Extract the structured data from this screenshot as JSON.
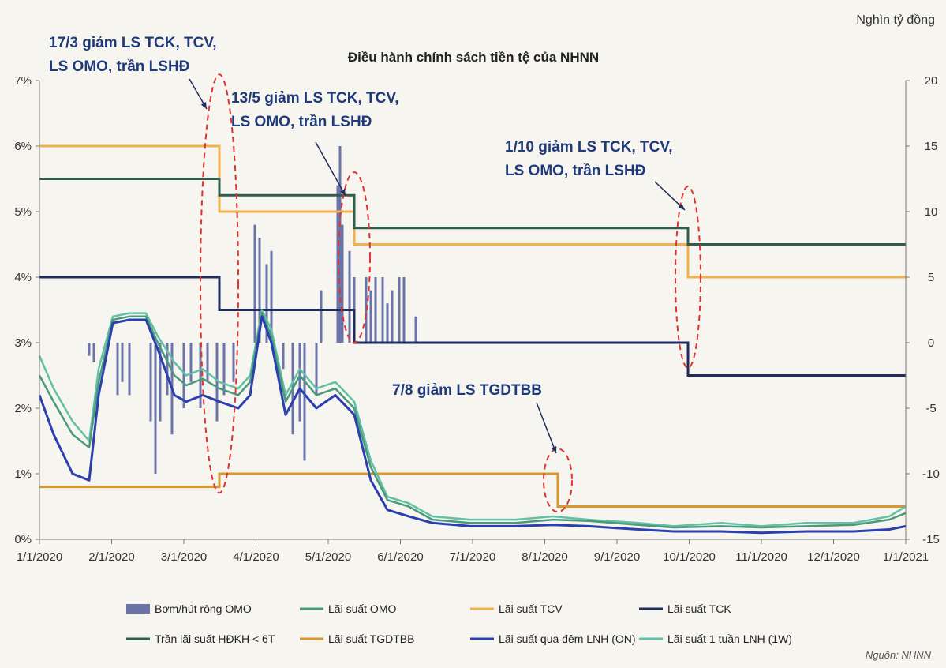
{
  "chart_data": {
    "type": "line",
    "title": "Điều hành chính sách tiền tệ của NHNN",
    "right_axis_unit": "Nghìn tỷ đồng",
    "source": "Nguồn: NHNN",
    "y_left": {
      "ticks": [
        "0%",
        "1%",
        "2%",
        "3%",
        "4%",
        "5%",
        "6%",
        "7%"
      ],
      "ylim": [
        0,
        7
      ]
    },
    "y_right": {
      "ticks": [
        "-15",
        "-10",
        "-5",
        "0",
        "5",
        "10",
        "15",
        "20"
      ],
      "ylim": [
        -15,
        20
      ]
    },
    "x_ticks": [
      "1/1/2020",
      "2/1/2020",
      "3/1/2020",
      "4/1/2020",
      "5/1/2020",
      "6/1/2020",
      "7/1/2020",
      "8/1/2020",
      "9/1/2020",
      "10/1/2020",
      "11/1/2020",
      "12/1/2020",
      "1/1/2021"
    ],
    "x_range": [
      "2020-01-01",
      "2021-01-01"
    ],
    "annotations": [
      {
        "lines": [
          "17/3 giảm LS TCK, TCV,",
          "LS OMO, trần LSHĐ"
        ],
        "date": "2020-03-17"
      },
      {
        "lines": [
          "13/5 giảm LS TCK, TCV,",
          "LS OMO, trần LSHĐ"
        ],
        "date": "2020-05-13"
      },
      {
        "lines": [
          "1/10 giảm LS TCK, TCV,",
          "LS OMO, trần LSHĐ"
        ],
        "date": "2020-10-01"
      },
      {
        "lines": [
          "7/8 giảm LS TGDTBB"
        ],
        "date": "2020-08-07"
      }
    ],
    "legend": [
      "Bơm/hút ròng OMO",
      "Lãi suất OMO",
      "Lãi suất TCV",
      "Lãi suất TCK",
      "Trần lãi suất HĐKH < 6T",
      "Lãi suất TGDTBB",
      "Lãi suất qua đêm LNH (ON)",
      "Lãi suất 1 tuần LNH (1W)"
    ],
    "colors": {
      "omo_bars": "#6a74a8",
      "omo_rate": "#4a9a7c",
      "tcv": "#f0b24e",
      "tck": "#1f2c5e",
      "tran": "#2f5c4c",
      "tgdtbb": "#d9982f",
      "on": "#2b3fae",
      "w1": "#62c0a6",
      "annotation_text": "#1f3a7a",
      "ellipse": "#e0332f"
    },
    "step_series": [
      {
        "name": "Lãi suất TCV",
        "key": "tcv",
        "points": [
          [
            "2020-01-01",
            6.0
          ],
          [
            "2020-03-17",
            5.0
          ],
          [
            "2020-05-13",
            4.5
          ],
          [
            "2020-10-01",
            4.0
          ],
          [
            "2021-01-01",
            4.0
          ]
        ]
      },
      {
        "name": "Trần lãi suất HĐKH < 6T",
        "key": "tran",
        "points": [
          [
            "2020-01-01",
            5.5
          ],
          [
            "2020-03-17",
            5.25
          ],
          [
            "2020-05-13",
            4.75
          ],
          [
            "2020-10-01",
            4.5
          ],
          [
            "2021-01-01",
            4.5
          ]
        ]
      },
      {
        "name": "Lãi suất TCK",
        "key": "tck",
        "points": [
          [
            "2020-01-01",
            4.0
          ],
          [
            "2020-03-17",
            3.5
          ],
          [
            "2020-05-13",
            3.0
          ],
          [
            "2020-10-01",
            2.5
          ],
          [
            "2021-01-01",
            2.5
          ]
        ]
      },
      {
        "name": "Lãi suất TGDTBB",
        "key": "tgdtbb",
        "points": [
          [
            "2020-01-01",
            0.8
          ],
          [
            "2020-03-17",
            1.0
          ],
          [
            "2020-08-07",
            0.5
          ],
          [
            "2021-01-01",
            0.5
          ]
        ]
      }
    ],
    "rate_series": [
      {
        "name": "Lãi suất 1 tuần LNH (1W)",
        "key": "w1",
        "points": [
          [
            "2020-01-01",
            2.8
          ],
          [
            "2020-01-07",
            2.3
          ],
          [
            "2020-01-15",
            1.8
          ],
          [
            "2020-01-22",
            1.5
          ],
          [
            "2020-01-26",
            2.6
          ],
          [
            "2020-02-01",
            3.4
          ],
          [
            "2020-02-08",
            3.45
          ],
          [
            "2020-02-15",
            3.45
          ],
          [
            "2020-02-20",
            3.1
          ],
          [
            "2020-02-27",
            2.7
          ],
          [
            "2020-03-03",
            2.5
          ],
          [
            "2020-03-10",
            2.6
          ],
          [
            "2020-03-17",
            2.4
          ],
          [
            "2020-03-25",
            2.3
          ],
          [
            "2020-03-30",
            2.5
          ],
          [
            "2020-04-04",
            3.5
          ],
          [
            "2020-04-08",
            3.2
          ],
          [
            "2020-04-14",
            2.2
          ],
          [
            "2020-04-20",
            2.6
          ],
          [
            "2020-04-27",
            2.3
          ],
          [
            "2020-05-05",
            2.4
          ],
          [
            "2020-05-13",
            2.1
          ],
          [
            "2020-05-20",
            1.2
          ],
          [
            "2020-05-27",
            0.65
          ],
          [
            "2020-06-05",
            0.55
          ],
          [
            "2020-06-15",
            0.35
          ],
          [
            "2020-07-01",
            0.3
          ],
          [
            "2020-07-20",
            0.3
          ],
          [
            "2020-08-05",
            0.35
          ],
          [
            "2020-08-20",
            0.3
          ],
          [
            "2020-09-10",
            0.25
          ],
          [
            "2020-09-25",
            0.2
          ],
          [
            "2020-10-15",
            0.25
          ],
          [
            "2020-11-01",
            0.2
          ],
          [
            "2020-11-20",
            0.25
          ],
          [
            "2020-12-10",
            0.25
          ],
          [
            "2020-12-25",
            0.35
          ],
          [
            "2021-01-01",
            0.5
          ]
        ]
      },
      {
        "name": "Lãi suất OMO",
        "key": "omo_rate",
        "points": [
          [
            "2020-01-01",
            2.5
          ],
          [
            "2020-01-07",
            2.1
          ],
          [
            "2020-01-15",
            1.6
          ],
          [
            "2020-01-22",
            1.4
          ],
          [
            "2020-01-26",
            2.4
          ],
          [
            "2020-02-01",
            3.35
          ],
          [
            "2020-02-08",
            3.4
          ],
          [
            "2020-02-15",
            3.4
          ],
          [
            "2020-02-20",
            3.0
          ],
          [
            "2020-02-27",
            2.5
          ],
          [
            "2020-03-03",
            2.35
          ],
          [
            "2020-03-10",
            2.45
          ],
          [
            "2020-03-17",
            2.3
          ],
          [
            "2020-03-25",
            2.2
          ],
          [
            "2020-03-30",
            2.4
          ],
          [
            "2020-04-04",
            3.45
          ],
          [
            "2020-04-08",
            3.1
          ],
          [
            "2020-04-14",
            2.1
          ],
          [
            "2020-04-20",
            2.5
          ],
          [
            "2020-04-27",
            2.2
          ],
          [
            "2020-05-05",
            2.3
          ],
          [
            "2020-05-13",
            2.0
          ],
          [
            "2020-05-20",
            1.1
          ],
          [
            "2020-05-27",
            0.6
          ],
          [
            "2020-06-05",
            0.5
          ],
          [
            "2020-06-15",
            0.3
          ],
          [
            "2020-07-01",
            0.25
          ],
          [
            "2020-07-20",
            0.25
          ],
          [
            "2020-08-05",
            0.3
          ],
          [
            "2020-08-20",
            0.28
          ],
          [
            "2020-09-10",
            0.22
          ],
          [
            "2020-09-25",
            0.18
          ],
          [
            "2020-10-15",
            0.2
          ],
          [
            "2020-11-01",
            0.18
          ],
          [
            "2020-11-20",
            0.2
          ],
          [
            "2020-12-10",
            0.22
          ],
          [
            "2020-12-25",
            0.3
          ],
          [
            "2021-01-01",
            0.4
          ]
        ]
      },
      {
        "name": "Lãi suất qua đêm LNH (ON)",
        "key": "on",
        "points": [
          [
            "2020-01-01",
            2.2
          ],
          [
            "2020-01-07",
            1.6
          ],
          [
            "2020-01-15",
            1.0
          ],
          [
            "2020-01-22",
            0.9
          ],
          [
            "2020-01-26",
            2.2
          ],
          [
            "2020-02-01",
            3.3
          ],
          [
            "2020-02-08",
            3.35
          ],
          [
            "2020-02-15",
            3.35
          ],
          [
            "2020-02-20",
            2.9
          ],
          [
            "2020-02-27",
            2.2
          ],
          [
            "2020-03-03",
            2.1
          ],
          [
            "2020-03-10",
            2.2
          ],
          [
            "2020-03-17",
            2.1
          ],
          [
            "2020-03-25",
            2.0
          ],
          [
            "2020-03-30",
            2.2
          ],
          [
            "2020-04-04",
            3.4
          ],
          [
            "2020-04-08",
            3.0
          ],
          [
            "2020-04-14",
            1.9
          ],
          [
            "2020-04-20",
            2.3
          ],
          [
            "2020-04-27",
            2.0
          ],
          [
            "2020-05-05",
            2.2
          ],
          [
            "2020-05-13",
            1.9
          ],
          [
            "2020-05-20",
            0.9
          ],
          [
            "2020-05-27",
            0.45
          ],
          [
            "2020-06-05",
            0.35
          ],
          [
            "2020-06-15",
            0.25
          ],
          [
            "2020-07-01",
            0.2
          ],
          [
            "2020-07-20",
            0.2
          ],
          [
            "2020-08-05",
            0.22
          ],
          [
            "2020-08-20",
            0.2
          ],
          [
            "2020-09-10",
            0.15
          ],
          [
            "2020-09-25",
            0.12
          ],
          [
            "2020-10-15",
            0.12
          ],
          [
            "2020-11-01",
            0.1
          ],
          [
            "2020-11-20",
            0.12
          ],
          [
            "2020-12-10",
            0.12
          ],
          [
            "2020-12-25",
            0.15
          ],
          [
            "2021-01-01",
            0.2
          ]
        ]
      }
    ],
    "omo_bars": [
      [
        "2020-01-22",
        0,
        -1
      ],
      [
        "2020-01-24",
        0,
        -1.5
      ],
      [
        "2020-02-03",
        0,
        -4
      ],
      [
        "2020-02-05",
        0,
        -3
      ],
      [
        "2020-02-08",
        0,
        -4
      ],
      [
        "2020-02-17",
        0,
        -6
      ],
      [
        "2020-02-19",
        0,
        -10
      ],
      [
        "2020-02-21",
        0,
        -6
      ],
      [
        "2020-02-24",
        0,
        -4
      ],
      [
        "2020-02-26",
        0,
        -7
      ],
      [
        "2020-03-02",
        0,
        -5
      ],
      [
        "2020-03-05",
        0,
        -3
      ],
      [
        "2020-03-09",
        0,
        -5
      ],
      [
        "2020-03-12",
        0,
        -3
      ],
      [
        "2020-03-16",
        0,
        -6
      ],
      [
        "2020-03-19",
        0,
        -4
      ],
      [
        "2020-03-23",
        0,
        -3
      ],
      [
        "2020-04-01",
        0,
        9
      ],
      [
        "2020-04-03",
        0,
        8
      ],
      [
        "2020-04-06",
        0,
        6
      ],
      [
        "2020-04-08",
        0,
        7
      ],
      [
        "2020-04-13",
        0,
        -2
      ],
      [
        "2020-04-17",
        0,
        -7
      ],
      [
        "2020-04-20",
        0,
        -6
      ],
      [
        "2020-04-22",
        0,
        -9
      ],
      [
        "2020-04-27",
        0,
        -4
      ],
      [
        "2020-04-29",
        0,
        4
      ],
      [
        "2020-05-06",
        0,
        12
      ],
      [
        "2020-05-07",
        0,
        15
      ],
      [
        "2020-05-08",
        0,
        9
      ],
      [
        "2020-05-11",
        0,
        7
      ],
      [
        "2020-05-13",
        0,
        5
      ],
      [
        "2020-05-18",
        0,
        5
      ],
      [
        "2020-05-20",
        0,
        4
      ],
      [
        "2020-05-22",
        0,
        5
      ],
      [
        "2020-05-25",
        0,
        5
      ],
      [
        "2020-05-27",
        0,
        3
      ],
      [
        "2020-05-29",
        0,
        4
      ],
      [
        "2020-06-01",
        0,
        5
      ],
      [
        "2020-06-03",
        0,
        5
      ],
      [
        "2020-06-08",
        0,
        2
      ]
    ]
  }
}
